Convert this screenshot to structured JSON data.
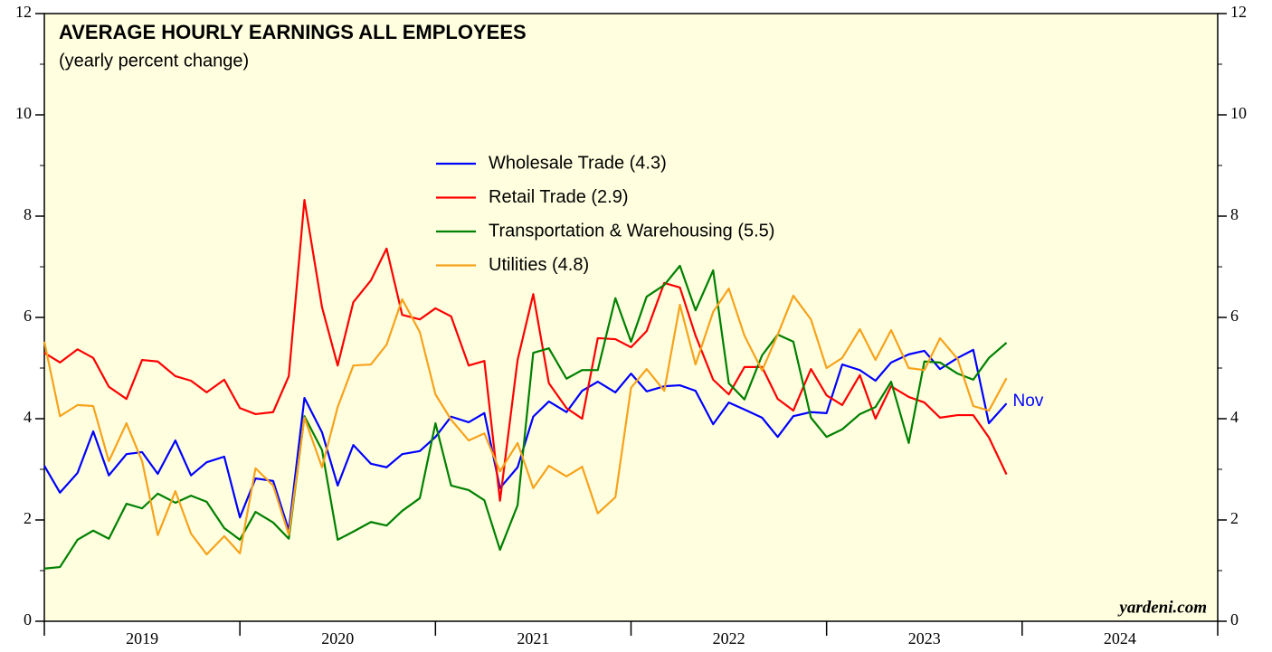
{
  "chart_data": {
    "type": "line",
    "title": "AVERAGE HOURLY EARNINGS ALL EMPLOYEES",
    "subtitle": "(yearly percent change)",
    "annotation": "Nov",
    "source": "yardeni.com",
    "x": [
      2019.0,
      2019.08,
      2019.17,
      2019.25,
      2019.33,
      2019.42,
      2019.5,
      2019.58,
      2019.67,
      2019.75,
      2019.83,
      2019.92,
      2020.0,
      2020.08,
      2020.17,
      2020.25,
      2020.33,
      2020.42,
      2020.5,
      2020.58,
      2020.67,
      2020.75,
      2020.83,
      2020.92,
      2021.0,
      2021.08,
      2021.17,
      2021.25,
      2021.33,
      2021.42,
      2021.5,
      2021.58,
      2021.67,
      2021.75,
      2021.83,
      2021.92,
      2022.0,
      2022.08,
      2022.17,
      2022.25,
      2022.33,
      2022.42,
      2022.5,
      2022.58,
      2022.67,
      2022.75,
      2022.83,
      2022.92,
      2023.0,
      2023.08,
      2023.17,
      2023.25,
      2023.33,
      2023.42,
      2023.5,
      2023.58,
      2023.67,
      2023.75,
      2023.83,
      2023.92
    ],
    "series": [
      {
        "name": "Wholesale Trade (4.3)",
        "color": "#0000ff",
        "values": [
          3.07,
          2.54,
          2.93,
          3.75,
          2.88,
          3.3,
          3.34,
          2.91,
          3.57,
          2.88,
          3.14,
          3.25,
          2.05,
          2.82,
          2.77,
          1.8,
          4.41,
          3.73,
          2.68,
          3.48,
          3.11,
          3.04,
          3.3,
          3.36,
          3.64,
          4.04,
          3.93,
          4.11,
          2.63,
          3.04,
          4.04,
          4.34,
          4.13,
          4.55,
          4.73,
          4.52,
          4.89,
          4.54,
          4.64,
          4.66,
          4.55,
          3.89,
          4.32,
          4.18,
          4.02,
          3.64,
          4.05,
          4.13,
          4.11,
          5.07,
          4.96,
          4.75,
          5.11,
          5.27,
          5.34,
          4.98,
          5.2,
          5.36,
          3.91,
          4.3
        ]
      },
      {
        "name": "Retail Trade (2.9)",
        "color": "#ff0000",
        "values": [
          5.3,
          5.11,
          5.37,
          5.2,
          4.63,
          4.39,
          5.16,
          5.13,
          4.84,
          4.75,
          4.52,
          4.77,
          4.21,
          4.09,
          4.13,
          4.84,
          8.32,
          6.2,
          5.05,
          6.3,
          6.73,
          7.36,
          6.05,
          5.96,
          6.18,
          6.02,
          5.05,
          5.14,
          2.38,
          5.16,
          6.46,
          4.7,
          4.21,
          4.0,
          5.59,
          5.57,
          5.41,
          5.73,
          6.68,
          6.59,
          5.64,
          4.77,
          4.48,
          5.02,
          5.02,
          4.39,
          4.16,
          4.98,
          4.46,
          4.27,
          4.86,
          4.0,
          4.64,
          4.43,
          4.32,
          4.02,
          4.07,
          4.07,
          3.63,
          2.9
        ]
      },
      {
        "name": "Transportation & Warehousing (5.5)",
        "color": "#008000",
        "values": [
          1.04,
          1.07,
          1.61,
          1.79,
          1.63,
          2.32,
          2.23,
          2.52,
          2.34,
          2.48,
          2.36,
          1.84,
          1.61,
          2.16,
          1.95,
          1.63,
          4.05,
          3.38,
          1.61,
          1.77,
          1.96,
          1.89,
          2.18,
          2.43,
          3.91,
          2.68,
          2.59,
          2.39,
          1.41,
          2.29,
          5.3,
          5.39,
          4.79,
          4.96,
          4.96,
          6.38,
          5.52,
          6.41,
          6.64,
          7.02,
          6.14,
          6.93,
          4.7,
          4.38,
          5.25,
          5.66,
          5.52,
          4.02,
          3.64,
          3.79,
          4.09,
          4.23,
          4.73,
          3.52,
          5.13,
          5.11,
          4.89,
          4.77,
          5.2,
          5.5
        ]
      },
      {
        "name": "Utilities (4.8)",
        "color": "#f7a21b",
        "values": [
          5.52,
          4.05,
          4.27,
          4.25,
          3.16,
          3.91,
          3.16,
          1.7,
          2.57,
          1.73,
          1.32,
          1.68,
          1.34,
          3.02,
          2.68,
          1.71,
          4.02,
          3.04,
          4.23,
          5.05,
          5.07,
          5.46,
          6.36,
          5.71,
          4.48,
          3.98,
          3.57,
          3.71,
          2.96,
          3.52,
          2.63,
          3.07,
          2.86,
          3.05,
          2.13,
          2.45,
          4.61,
          4.98,
          4.55,
          6.25,
          5.07,
          6.11,
          6.57,
          5.64,
          4.95,
          5.66,
          6.43,
          5.96,
          5.0,
          5.2,
          5.77,
          5.16,
          5.75,
          5.0,
          4.96,
          5.59,
          5.18,
          4.25,
          4.16,
          4.8
        ]
      }
    ],
    "xlim": [
      2019,
      2025
    ],
    "xticks": [
      2019,
      2020,
      2021,
      2022,
      2023,
      2024,
      2025
    ],
    "year_labels": [
      2019,
      2020,
      2021,
      2022,
      2023,
      2024
    ],
    "ylim": [
      0,
      12
    ],
    "yticks": [
      0,
      2,
      4,
      6,
      8,
      10,
      12
    ],
    "yticks_minor": [
      1,
      3,
      5,
      7,
      9,
      11
    ],
    "background": "#ffffe0"
  }
}
